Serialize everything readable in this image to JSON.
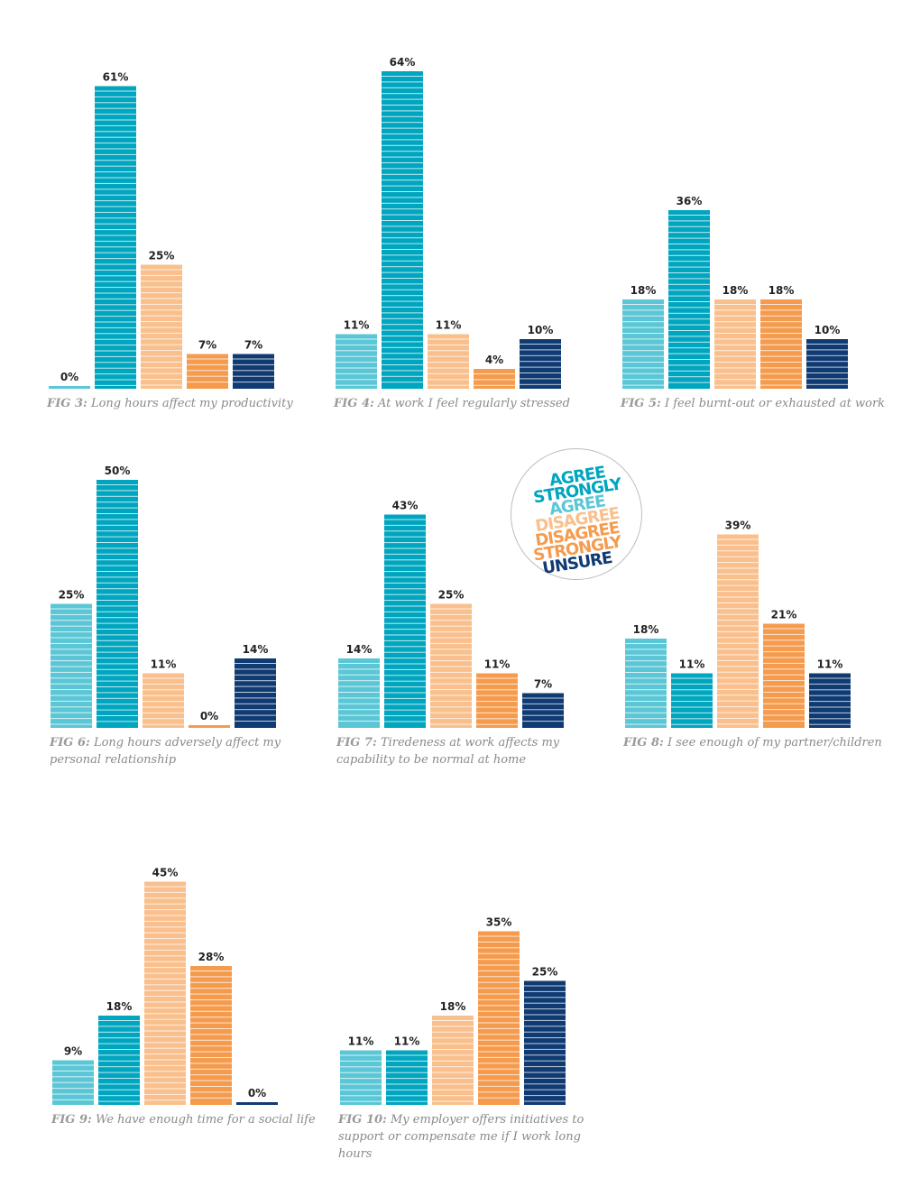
{
  "colors": {
    "agree": "#5bc7d6",
    "strongly_agree": "#00a6bf",
    "disagree": "#f9c08d",
    "disagree_strongly": "#f59b4e",
    "unsure": "#0f3a72",
    "caption": "#8a8a8a"
  },
  "legend": {
    "items": [
      {
        "text": "AGREE",
        "color": "#00a6bf"
      },
      {
        "text": "STRONGLY",
        "color": "#00a6bf"
      },
      {
        "text": "AGREE",
        "color": "#5bc7d6"
      },
      {
        "text": "DISAGREE",
        "color": "#f9c08d"
      },
      {
        "text": "DISAGREE",
        "color": "#f59b4e"
      },
      {
        "text": "STRONGLY",
        "color": "#f59b4e"
      },
      {
        "text": "UNSURE",
        "color": "#0f3a72"
      }
    ]
  },
  "chart_data": [
    {
      "type": "bar",
      "fig": "FIG 3:",
      "title": "Long hours affect my productivity",
      "values": [
        0,
        61,
        25,
        7,
        7
      ],
      "labels": [
        "0%",
        "61%",
        "25%",
        "7%",
        "7%"
      ],
      "ylim": [
        0,
        64
      ]
    },
    {
      "type": "bar",
      "fig": "FIG 4:",
      "title": "At work I feel regularly stressed",
      "values": [
        11,
        64,
        11,
        4,
        10
      ],
      "labels": [
        "11%",
        "64%",
        "11%",
        "4%",
        "10%"
      ],
      "ylim": [
        0,
        64
      ]
    },
    {
      "type": "bar",
      "fig": "FIG 5:",
      "title": "I feel burnt-out or exhausted at work",
      "values": [
        18,
        36,
        18,
        18,
        10
      ],
      "labels": [
        "18%",
        "36%",
        "18%",
        "18%",
        "10%"
      ],
      "ylim": [
        0,
        64
      ]
    },
    {
      "type": "bar",
      "fig": "FIG 6:",
      "title": "Long hours adversely affect my personal relationship",
      "values": [
        25,
        50,
        11,
        0,
        14
      ],
      "labels": [
        "25%",
        "50%",
        "11%",
        "0%",
        "14%"
      ],
      "ylim": [
        0,
        64
      ]
    },
    {
      "type": "bar",
      "fig": "FIG 7:",
      "title": "Tiredeness at work affects my capability to be normal at home",
      "values": [
        14,
        43,
        25,
        11,
        7
      ],
      "labels": [
        "14%",
        "43%",
        "25%",
        "11%",
        "7%"
      ],
      "ylim": [
        0,
        64
      ]
    },
    {
      "type": "bar",
      "fig": "FIG 8:",
      "title": "I see enough of my partner/children",
      "values": [
        18,
        11,
        39,
        21,
        11
      ],
      "labels": [
        "18%",
        "11%",
        "39%",
        "21%",
        "11%"
      ],
      "ylim": [
        0,
        64
      ]
    },
    {
      "type": "bar",
      "fig": "FIG 9:",
      "title": "We have enough time for a social life",
      "values": [
        9,
        18,
        45,
        28,
        0
      ],
      "labels": [
        "9%",
        "18%",
        "45%",
        "28%",
        "0%"
      ],
      "ylim": [
        0,
        64
      ]
    },
    {
      "type": "bar",
      "fig": "FIG 10:",
      "title": "My employer offers initiatives to support or compensate me if I work long hours",
      "values": [
        11,
        11,
        18,
        35,
        25
      ],
      "labels": [
        "11%",
        "11%",
        "18%",
        "35%",
        "25%"
      ],
      "ylim": [
        0,
        64
      ]
    }
  ]
}
